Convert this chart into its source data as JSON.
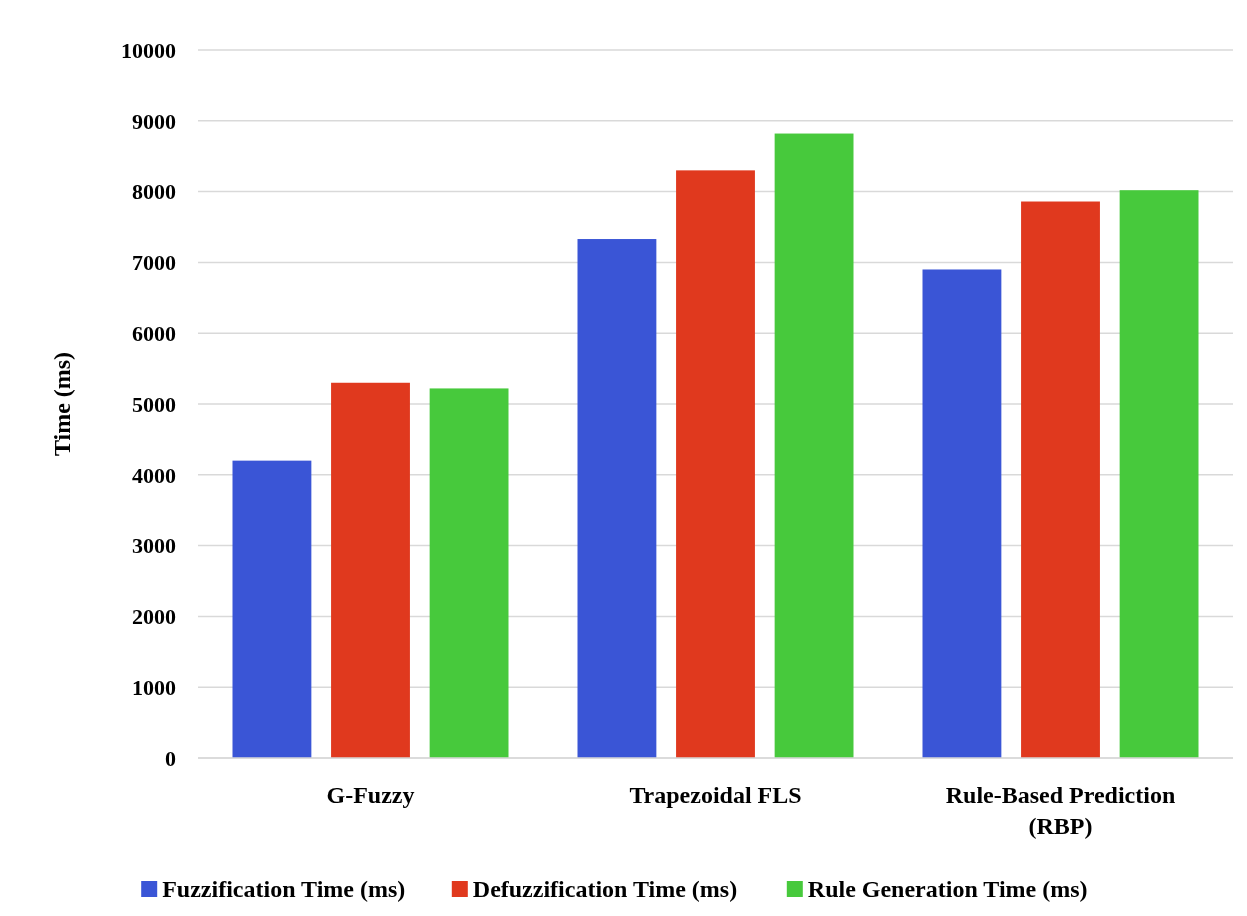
{
  "chart_data": {
    "type": "bar",
    "ylabel": "Time (ms)",
    "categories": [
      "G-Fuzzy",
      "Trapezoidal FLS",
      "Rule-Based Prediction (RBP)"
    ],
    "series": [
      {
        "name": "Fuzzification Time (ms)",
        "color": "#3a55d6",
        "values": [
          4200,
          7330,
          6900
        ]
      },
      {
        "name": "Defuzzification Time (ms)",
        "color": "#e0391e",
        "values": [
          5300,
          8300,
          7860
        ]
      },
      {
        "name": "Rule Generation Time (ms)",
        "color": "#47c93c",
        "values": [
          5220,
          8820,
          8020
        ]
      }
    ],
    "ylim": [
      0,
      10000
    ],
    "yticks": [
      0,
      1000,
      2000,
      3000,
      4000,
      5000,
      6000,
      7000,
      8000,
      9000,
      10000
    ],
    "grid": "y",
    "legend": "bottom"
  }
}
